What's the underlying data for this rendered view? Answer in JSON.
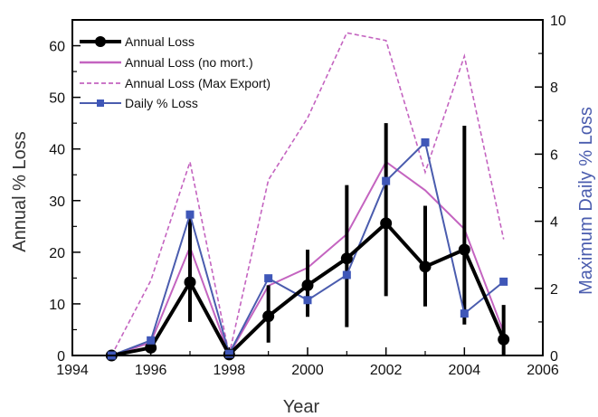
{
  "chart_data": {
    "type": "line",
    "xlabel": "Year",
    "ylabel_left": "Annual % Loss",
    "ylabel_right": "Maximum Daily % Loss",
    "xlim": [
      1994,
      2006
    ],
    "ylim_left": [
      0,
      65
    ],
    "ylim_right": [
      0,
      10
    ],
    "x_ticks": [
      "1994",
      "1996",
      "1998",
      "2000",
      "2002",
      "2004",
      "2006"
    ],
    "y_left_ticks": [
      "0",
      "10",
      "20",
      "30",
      "40",
      "50",
      "60"
    ],
    "y_right_ticks": [
      "0",
      "2",
      "4",
      "6",
      "8",
      "10"
    ],
    "x_minor_ticks": [
      1995,
      1997,
      1999,
      2001,
      2003,
      2005
    ],
    "y_left_minor_ticks": [
      5,
      15,
      25,
      35,
      45,
      55
    ],
    "y_right_minor_ticks": [
      1,
      3,
      5,
      7,
      9
    ],
    "legend_position": "top-left",
    "colors": {
      "annual_loss": "#000000",
      "no_mort": "#c464c0",
      "max_export": "#c464c0",
      "daily": "#4a5cae",
      "daily_marker": "#3f57b8"
    },
    "series": [
      {
        "name": "Annual Loss",
        "axis": "left",
        "x": [
          1995,
          1996,
          1997,
          1998,
          1999,
          2000,
          2001,
          2002,
          2003,
          2004,
          2005
        ],
        "values": [
          0,
          1.5,
          14.2,
          0.2,
          7.6,
          13.6,
          18.8,
          25.6,
          17.2,
          20.5,
          3.1
        ],
        "err_low": [
          0,
          1.0,
          6.5,
          0.2,
          2.5,
          7.5,
          5.5,
          11.5,
          9.5,
          6.0,
          0
        ],
        "err_high": [
          0,
          2.5,
          28.0,
          0.2,
          13.6,
          20.5,
          33.0,
          45.0,
          29.0,
          44.5,
          9.8
        ]
      },
      {
        "name": "Annual Loss (no mort.)",
        "axis": "left",
        "x": [
          1995,
          1996,
          1997,
          1998,
          1999,
          2000,
          2001,
          2002,
          2003,
          2004,
          2005
        ],
        "values": [
          0,
          2.5,
          21.0,
          0.2,
          13.5,
          17.0,
          23.5,
          37.5,
          32.0,
          24.5,
          4.5
        ]
      },
      {
        "name": "Annual Loss (Max Export)",
        "axis": "left",
        "x": [
          1995,
          1996,
          1997,
          1998,
          1999,
          2000,
          2001,
          2002,
          2003,
          2004,
          2005
        ],
        "values": [
          0,
          14.5,
          37.5,
          0.2,
          34.0,
          46.0,
          62.5,
          61.0,
          35.5,
          58.0,
          22.5
        ]
      },
      {
        "name": "Daily % Loss",
        "axis": "right",
        "x": [
          1995,
          1996,
          1997,
          1998,
          1999,
          2000,
          2001,
          2002,
          2003,
          2004,
          2005
        ],
        "values": [
          0,
          0.45,
          4.2,
          0.05,
          2.3,
          1.65,
          2.4,
          5.2,
          6.35,
          1.25,
          2.2
        ]
      }
    ]
  }
}
